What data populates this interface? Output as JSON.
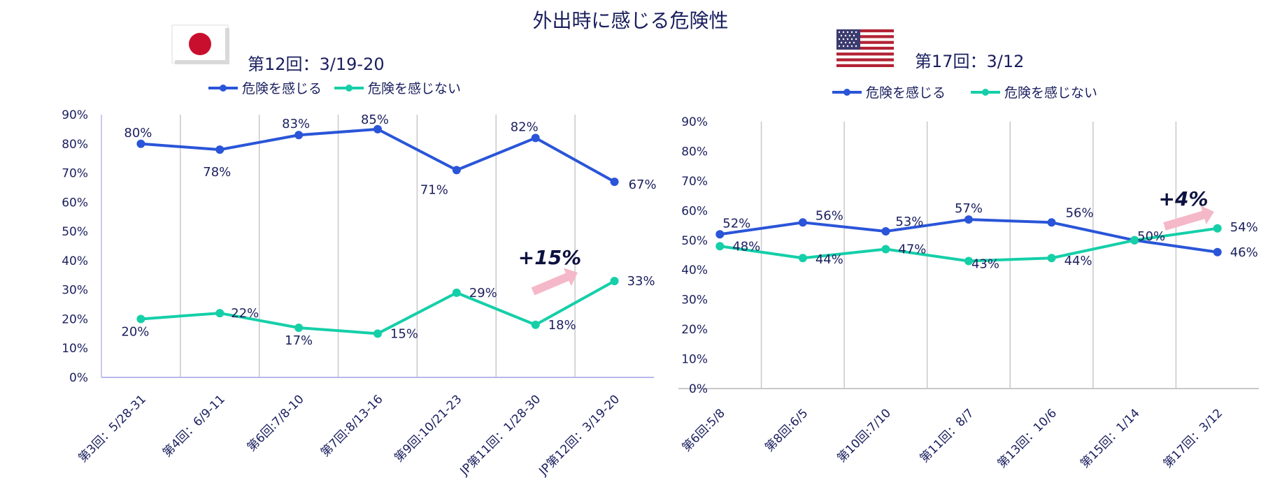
{
  "title": "外出時に感じる危険性",
  "colors": {
    "danger": "#2a55d8",
    "no_danger": "#15cfa8",
    "arrow": "#f4b8c8",
    "text": "#1a1f5e",
    "annotation": "#0d1240"
  },
  "icons": {
    "japan": "japan-flag-icon",
    "usa": "usa-flag-icon"
  },
  "chart_data": [
    {
      "type": "line",
      "country_icon": "japan-flag-icon",
      "subtitle": "第12回：3/19-20",
      "categories": [
        "第3回：5/28-31",
        "第4回：6/9-11",
        "第6回:7/8-10",
        "第7回:8/13-16",
        "第9回:10/21-23",
        "JP第11回：1/28-30",
        "JP第12回：3/19-20"
      ],
      "series": [
        {
          "name": "危険を感じる",
          "values": [
            80,
            78,
            83,
            85,
            71,
            82,
            67
          ],
          "labels": [
            "80%",
            "78%",
            "83%",
            "85%",
            "71%",
            "82%",
            "67%"
          ]
        },
        {
          "name": "危険を感じない",
          "values": [
            20,
            22,
            17,
            15,
            29,
            18,
            33
          ],
          "labels": [
            "20%",
            "22%",
            "17%",
            "15%",
            "29%",
            "18%",
            "33%"
          ]
        }
      ],
      "ylim": [
        0,
        90
      ],
      "yticks": [
        "0%",
        "10%",
        "20%",
        "30%",
        "40%",
        "50%",
        "60%",
        "70%",
        "80%",
        "90%"
      ],
      "annotation": "+15%",
      "legend": "top",
      "grid": "vertical"
    },
    {
      "type": "line",
      "country_icon": "usa-flag-icon",
      "subtitle": "第17回：3/12",
      "categories": [
        "第6回:5/8",
        "第8回:6/5",
        "第10回:7/10",
        "第11回：8/7",
        "第13回：10/6",
        "第15回：1/14",
        "第17回：3/12"
      ],
      "series": [
        {
          "name": "危険を感じる",
          "values": [
            52,
            56,
            53,
            57,
            56,
            50,
            46
          ],
          "labels": [
            "52%",
            "56%",
            "53%",
            "57%",
            "56%",
            "",
            "46%"
          ]
        },
        {
          "name": "危険を感じない",
          "values": [
            48,
            44,
            47,
            43,
            44,
            50,
            54
          ],
          "labels": [
            "48%",
            "44%",
            "47%",
            "43%",
            "44%",
            "50%",
            "54%"
          ]
        }
      ],
      "ylim": [
        0,
        90
      ],
      "yticks": [
        "0%",
        "10%",
        "20%",
        "30%",
        "40%",
        "50%",
        "60%",
        "70%",
        "80%",
        "90%"
      ],
      "annotation": "+4%",
      "legend": "top",
      "grid": "vertical"
    }
  ]
}
